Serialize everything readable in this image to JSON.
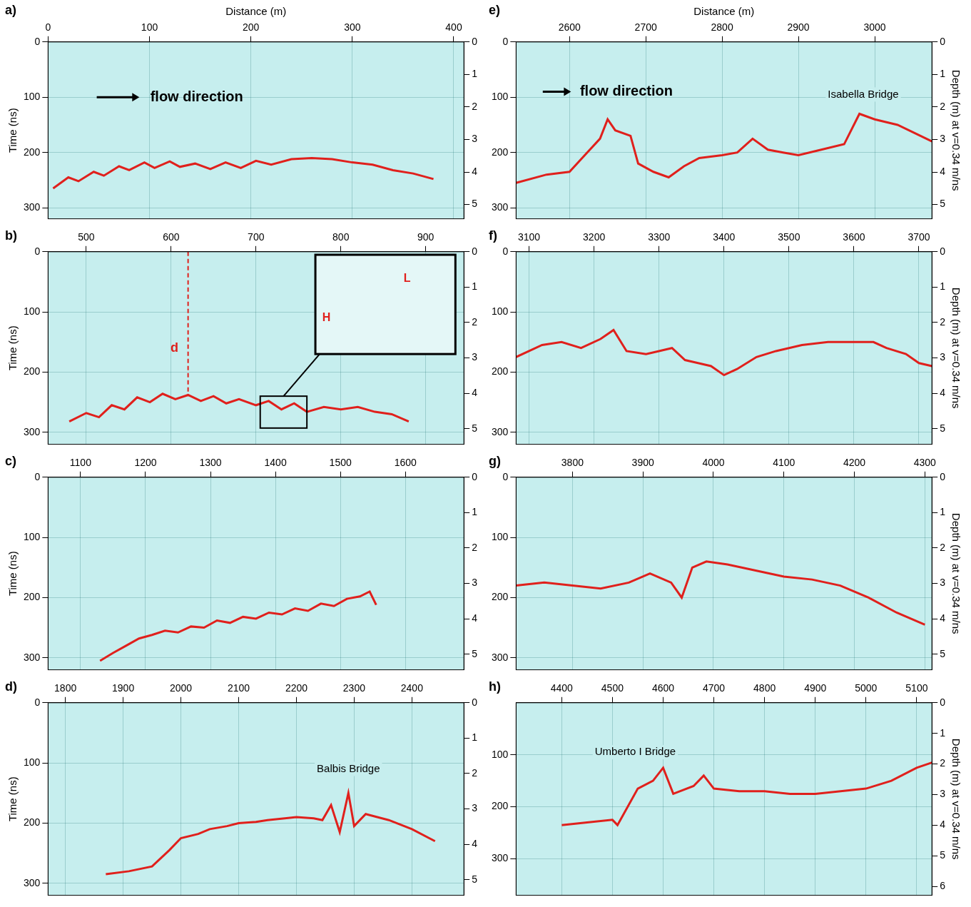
{
  "chart_data": [
    {
      "label": "a)",
      "type": "line",
      "color": "#e0201c",
      "grid": true,
      "x_label": "Distance (m)",
      "y_label": "Time (ns)",
      "x": [
        5,
        20,
        30,
        45,
        55,
        70,
        80,
        95,
        105,
        120,
        130,
        145,
        160,
        175,
        190,
        205,
        220,
        240,
        260,
        280,
        300,
        320,
        340,
        360,
        380
      ],
      "values": [
        265,
        245,
        252,
        235,
        242,
        225,
        232,
        218,
        228,
        216,
        226,
        220,
        230,
        218,
        228,
        215,
        222,
        212,
        210,
        212,
        218,
        222,
        232,
        238,
        248
      ],
      "xlim": [
        0,
        410
      ],
      "xticks": [
        0,
        100,
        200,
        300,
        400
      ],
      "ylim": [
        0,
        320
      ],
      "yticks": [
        0,
        100,
        200,
        300
      ],
      "y2lim": [
        0,
        5.44
      ],
      "y2ticks": [
        0,
        1,
        2,
        3,
        4,
        5
      ],
      "annotations": [
        {
          "text": "flow direction",
          "x": 98,
          "y": 100,
          "arrow_from": 48,
          "arrow_to": 90,
          "color": "#000000"
        }
      ]
    },
    {
      "label": "b)",
      "type": "line",
      "color": "#e0201c",
      "grid": true,
      "y_label": "Time (ns)",
      "x": [
        480,
        500,
        515,
        530,
        545,
        560,
        575,
        590,
        605,
        620,
        635,
        650,
        665,
        680,
        700,
        715,
        730,
        745,
        760,
        780,
        800,
        820,
        840,
        860,
        880
      ],
      "values": [
        282,
        268,
        275,
        255,
        262,
        242,
        250,
        236,
        245,
        238,
        248,
        240,
        252,
        245,
        255,
        248,
        262,
        252,
        266,
        258,
        262,
        258,
        266,
        270,
        282
      ],
      "xlim": [
        455,
        945
      ],
      "xticks": [
        500,
        600,
        700,
        800,
        900
      ],
      "ylim": [
        0,
        320
      ],
      "yticks": [
        0,
        100,
        200,
        300
      ],
      "y2lim": [
        0,
        5.44
      ],
      "y2ticks": [
        0,
        1,
        2,
        3,
        4,
        5
      ],
      "annotations": [
        {
          "text": "d",
          "x": 604,
          "y": 160,
          "color": "#e0201c",
          "vline": {
            "x": 620,
            "from": 0,
            "to": 240
          }
        }
      ],
      "inset": {
        "x": [
          770,
          935
        ],
        "y": [
          5,
          170
        ],
        "zoom_box": {
          "x": [
            705,
            760
          ],
          "y": [
            240,
            293
          ]
        },
        "texts": [
          {
            "text": "H",
            "x": 783,
            "y": 110,
            "color": "#e0201c"
          },
          {
            "text": "L",
            "x": 878,
            "y": 45,
            "color": "#e0201c"
          }
        ]
      }
    },
    {
      "label": "c)",
      "type": "line",
      "color": "#e0201c",
      "grid": true,
      "y_label": "Time (ns)",
      "x": [
        1130,
        1150,
        1170,
        1190,
        1210,
        1230,
        1250,
        1270,
        1290,
        1310,
        1330,
        1350,
        1370,
        1390,
        1410,
        1430,
        1450,
        1470,
        1490,
        1510,
        1530,
        1545,
        1555
      ],
      "values": [
        305,
        292,
        280,
        268,
        262,
        255,
        258,
        248,
        250,
        238,
        242,
        232,
        235,
        225,
        228,
        218,
        222,
        210,
        214,
        202,
        198,
        190,
        212
      ],
      "xlim": [
        1050,
        1690
      ],
      "xticks": [
        1100,
        1200,
        1300,
        1400,
        1500,
        1600
      ],
      "ylim": [
        0,
        320
      ],
      "yticks": [
        0,
        100,
        200,
        300
      ],
      "y2lim": [
        0,
        5.44
      ],
      "y2ticks": [
        0,
        1,
        2,
        3,
        4,
        5
      ]
    },
    {
      "label": "d)",
      "type": "line",
      "color": "#e0201c",
      "grid": true,
      "y_label": "Time (ns)",
      "x": [
        1870,
        1910,
        1950,
        1980,
        2000,
        2030,
        2050,
        2080,
        2100,
        2130,
        2150,
        2180,
        2200,
        2230,
        2245,
        2260,
        2275,
        2290,
        2300,
        2320,
        2340,
        2360,
        2400,
        2440
      ],
      "values": [
        285,
        280,
        272,
        245,
        225,
        218,
        210,
        205,
        200,
        198,
        195,
        192,
        190,
        192,
        195,
        170,
        215,
        150,
        205,
        185,
        190,
        195,
        210,
        230
      ],
      "xlim": [
        1770,
        2490
      ],
      "xticks": [
        1800,
        1900,
        2000,
        2100,
        2200,
        2300,
        2400
      ],
      "ylim": [
        0,
        320
      ],
      "yticks": [
        0,
        100,
        200,
        300
      ],
      "y2lim": [
        0,
        5.44
      ],
      "y2ticks": [
        0,
        1,
        2,
        3,
        4,
        5
      ],
      "annotations": [
        {
          "text": "Balbis Bridge",
          "x": 2290,
          "y": 110,
          "color": "#000000"
        }
      ]
    },
    {
      "label": "e)",
      "type": "line",
      "color": "#e0201c",
      "grid": true,
      "x_label": "Distance (m)",
      "y2_label": "Depth (m) at v=0.34 m/ns",
      "x": [
        2530,
        2570,
        2600,
        2620,
        2640,
        2650,
        2660,
        2680,
        2690,
        2710,
        2730,
        2750,
        2770,
        2800,
        2820,
        2840,
        2860,
        2880,
        2900,
        2930,
        2960,
        2980,
        3000,
        3030,
        3060,
        3075
      ],
      "values": [
        255,
        240,
        235,
        205,
        175,
        140,
        160,
        170,
        220,
        235,
        245,
        225,
        210,
        205,
        200,
        175,
        195,
        200,
        205,
        195,
        185,
        130,
        140,
        150,
        170,
        180
      ],
      "xlim": [
        2530,
        3075
      ],
      "xticks": [
        2600,
        2700,
        2800,
        2900,
        3000
      ],
      "ylim": [
        0,
        320
      ],
      "yticks": [
        0,
        100,
        200,
        300
      ],
      "y2lim": [
        0,
        5.44
      ],
      "y2ticks": [
        0,
        1,
        2,
        3,
        4,
        5
      ],
      "annotations": [
        {
          "text": "flow direction",
          "x": 2610,
          "y": 90,
          "arrow_from": 2565,
          "arrow_to": 2602,
          "color": "#000000"
        },
        {
          "text": "Isabella Bridge",
          "x": 2985,
          "y": 95,
          "color": "#000000"
        }
      ]
    },
    {
      "label": "f)",
      "type": "line",
      "color": "#e0201c",
      "grid": true,
      "y2_label": "Depth (m) at v=0.34 m/ns",
      "x": [
        3080,
        3100,
        3120,
        3150,
        3180,
        3210,
        3230,
        3250,
        3280,
        3300,
        3320,
        3340,
        3360,
        3380,
        3400,
        3420,
        3450,
        3480,
        3520,
        3560,
        3600,
        3630,
        3650,
        3680,
        3700,
        3720
      ],
      "values": [
        175,
        165,
        155,
        150,
        160,
        145,
        130,
        165,
        170,
        165,
        160,
        180,
        185,
        190,
        205,
        195,
        175,
        165,
        155,
        150,
        150,
        150,
        160,
        170,
        185,
        190
      ],
      "xlim": [
        3080,
        3720
      ],
      "xticks": [
        3100,
        3200,
        3300,
        3400,
        3500,
        3600,
        3700
      ],
      "ylim": [
        0,
        320
      ],
      "yticks": [
        0,
        100,
        200,
        300
      ],
      "y2lim": [
        0,
        5.44
      ],
      "y2ticks": [
        0,
        1,
        2,
        3,
        4,
        5
      ]
    },
    {
      "label": "g)",
      "type": "line",
      "color": "#e0201c",
      "grid": true,
      "y2_label": "Depth (m) at v=0.34 m/ns",
      "x": [
        3720,
        3760,
        3800,
        3840,
        3880,
        3910,
        3940,
        3955,
        3970,
        3990,
        4020,
        4060,
        4100,
        4140,
        4180,
        4220,
        4260,
        4300
      ],
      "values": [
        180,
        175,
        180,
        185,
        175,
        160,
        175,
        200,
        150,
        140,
        145,
        155,
        165,
        170,
        180,
        200,
        225,
        245
      ],
      "xlim": [
        3720,
        4310
      ],
      "xticks": [
        3800,
        3900,
        4000,
        4100,
        4200,
        4300
      ],
      "ylim": [
        0,
        320
      ],
      "yticks": [
        0,
        100,
        200,
        300
      ],
      "y2lim": [
        0,
        5.44
      ],
      "y2ticks": [
        0,
        1,
        2,
        3,
        4,
        5
      ]
    },
    {
      "label": "h)",
      "type": "line",
      "color": "#e0201c",
      "grid": true,
      "y2_label": "Depth (m) at v=0.34 m/ns",
      "x": [
        4400,
        4450,
        4500,
        4510,
        4550,
        4580,
        4600,
        4620,
        4660,
        4680,
        4700,
        4750,
        4800,
        4850,
        4900,
        4950,
        5000,
        5050,
        5100,
        5130
      ],
      "values": [
        235,
        230,
        225,
        235,
        165,
        150,
        125,
        175,
        160,
        140,
        165,
        170,
        170,
        175,
        175,
        170,
        165,
        150,
        125,
        115
      ],
      "xlim": [
        4310,
        5130
      ],
      "xticks": [
        4400,
        4500,
        4600,
        4700,
        4800,
        4900,
        5000,
        5100
      ],
      "ylim": [
        0,
        370
      ],
      "yticks": [
        100,
        200,
        300
      ],
      "y2lim": [
        0,
        6.29
      ],
      "y2ticks": [
        0,
        1,
        2,
        3,
        4,
        5,
        6
      ],
      "annotations": [
        {
          "text": "Umberto I Bridge",
          "x": 4545,
          "y": 95,
          "color": "#000000"
        }
      ]
    }
  ]
}
